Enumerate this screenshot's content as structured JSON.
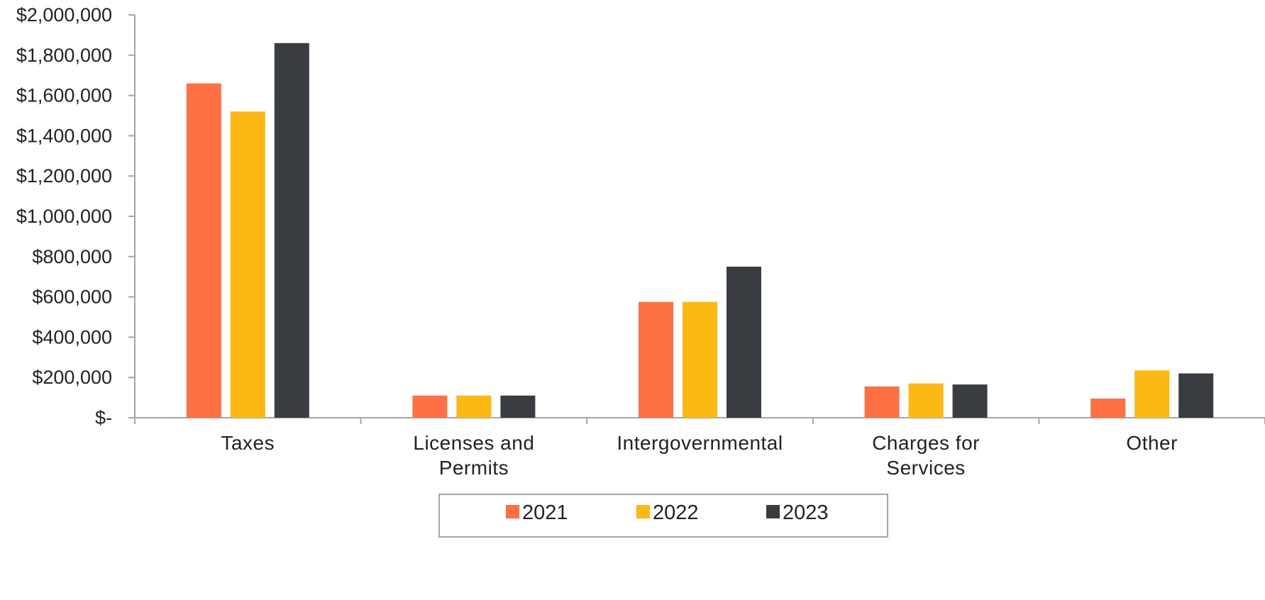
{
  "chart_data": {
    "type": "bar",
    "categories": [
      [
        "Taxes"
      ],
      [
        "Licenses and",
        "Permits"
      ],
      [
        "Intergovernmental"
      ],
      [
        "Charges for",
        "Services"
      ],
      [
        "Other"
      ]
    ],
    "series": [
      {
        "name": "2021",
        "color": "#FF7043",
        "values": [
          1660000,
          110000,
          575000,
          155000,
          95000
        ]
      },
      {
        "name": "2022",
        "color": "#FDB813",
        "values": [
          1520000,
          110000,
          575000,
          170000,
          235000
        ]
      },
      {
        "name": "2023",
        "color": "#393D42",
        "values": [
          1860000,
          110000,
          750000,
          165000,
          220000
        ]
      }
    ],
    "ylim": [
      0,
      2000000
    ],
    "y_ticks": [
      {
        "value": 0,
        "label": "$-"
      },
      {
        "value": 200000,
        "label": "$200,000"
      },
      {
        "value": 400000,
        "label": "$400,000"
      },
      {
        "value": 600000,
        "label": "$600,000"
      },
      {
        "value": 800000,
        "label": "$800,000"
      },
      {
        "value": 1000000,
        "label": "$1,000,000"
      },
      {
        "value": 1200000,
        "label": "$1,200,000"
      },
      {
        "value": 1400000,
        "label": "$1,400,000"
      },
      {
        "value": 1600000,
        "label": "$1,600,000"
      },
      {
        "value": 1800000,
        "label": "$1,800,000"
      },
      {
        "value": 2000000,
        "label": "$2,000,000"
      }
    ],
    "grid": false,
    "legend": "bottom",
    "axis_color": "#A6A6A6"
  }
}
